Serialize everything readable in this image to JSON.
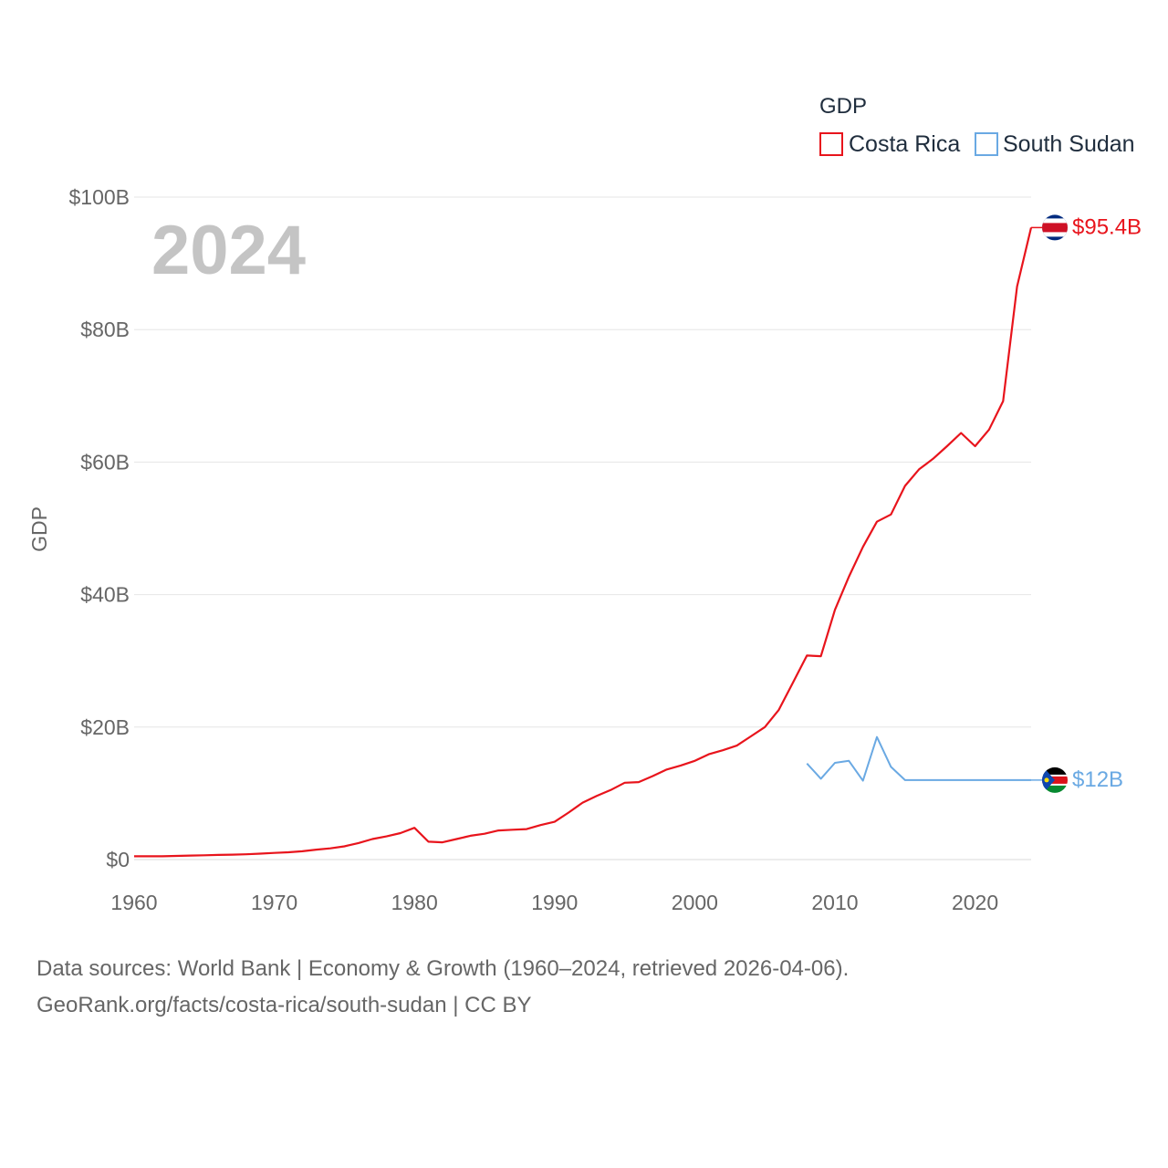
{
  "chart_data": {
    "type": "line",
    "legend_title": "GDP",
    "ylabel": "GDP",
    "year_label": "2024",
    "x_ticks": [
      1960,
      1970,
      1980,
      1990,
      2000,
      2010,
      2020
    ],
    "y_ticks": [
      {
        "value": 0,
        "label": "$0"
      },
      {
        "value": 20,
        "label": "$20B"
      },
      {
        "value": 40,
        "label": "$40B"
      },
      {
        "value": 60,
        "label": "$60B"
      },
      {
        "value": 80,
        "label": "$80B"
      },
      {
        "value": 100,
        "label": "$100B"
      }
    ],
    "xlim": [
      1960,
      2024
    ],
    "ylim": [
      0,
      100
    ],
    "units": "billions USD",
    "series": [
      {
        "name": "Costa Rica",
        "color": "#e8141c",
        "end_label": "$95.4B",
        "flag": "costa-rica-flag-icon",
        "x": [
          1960,
          1961,
          1962,
          1963,
          1964,
          1965,
          1966,
          1967,
          1968,
          1969,
          1970,
          1971,
          1972,
          1973,
          1974,
          1975,
          1976,
          1977,
          1978,
          1979,
          1980,
          1981,
          1982,
          1983,
          1984,
          1985,
          1986,
          1987,
          1988,
          1989,
          1990,
          1991,
          1992,
          1993,
          1994,
          1995,
          1996,
          1997,
          1998,
          1999,
          2000,
          2001,
          2002,
          2003,
          2004,
          2005,
          2006,
          2007,
          2008,
          2009,
          2010,
          2011,
          2012,
          2013,
          2014,
          2015,
          2016,
          2017,
          2018,
          2019,
          2020,
          2021,
          2022,
          2023,
          2024
        ],
        "values": [
          0.5,
          0.5,
          0.5,
          0.55,
          0.6,
          0.65,
          0.7,
          0.75,
          0.8,
          0.9,
          1.0,
          1.1,
          1.25,
          1.5,
          1.7,
          2.0,
          2.5,
          3.1,
          3.5,
          4.0,
          4.8,
          2.7,
          2.6,
          3.1,
          3.6,
          3.9,
          4.4,
          4.5,
          4.6,
          5.2,
          5.7,
          7.1,
          8.6,
          9.6,
          10.5,
          11.6,
          11.7,
          12.6,
          13.6,
          14.2,
          14.9,
          15.9,
          16.5,
          17.2,
          18.6,
          20.0,
          22.6,
          26.7,
          30.8,
          30.7,
          37.7,
          42.7,
          47.2,
          51.0,
          52.1,
          56.4,
          58.9,
          60.5,
          62.4,
          64.4,
          62.4,
          64.9,
          69.2,
          86.5,
          95.4
        ]
      },
      {
        "name": "South Sudan",
        "color": "#6aa9e3",
        "end_label": "$12B",
        "flag": "south-sudan-flag-icon",
        "x": [
          2008,
          2009,
          2010,
          2011,
          2012,
          2013,
          2014,
          2015,
          2016,
          2017,
          2018,
          2019,
          2020,
          2021,
          2022,
          2023,
          2024
        ],
        "values": [
          14.5,
          12.2,
          14.6,
          14.9,
          11.9,
          18.5,
          14.0,
          12.0,
          12.0,
          12.0,
          12.0,
          12.0,
          12.0,
          12.0,
          12.0,
          12.0,
          12.0
        ]
      }
    ]
  },
  "footer": {
    "line1": "Data sources: World Bank | Economy & Growth (1960–2024, retrieved 2026-04-06).",
    "line2": "GeoRank.org/facts/costa-rica/south-sudan | CC BY"
  }
}
